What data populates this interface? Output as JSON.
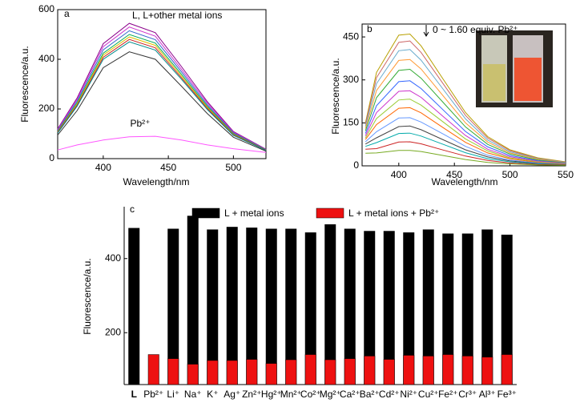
{
  "chart_data": [
    {
      "type": "line",
      "panel": "a",
      "annotation": "L, L+other metal ions",
      "annotation2": "Pb²⁺",
      "xlabel": "Wavelength/nm",
      "ylabel": "Fluorescence/a.u.",
      "xlim": [
        365,
        525
      ],
      "ylim": [
        0,
        600
      ],
      "xticks": [
        400,
        450,
        500
      ],
      "yticks": [
        0,
        200,
        400,
        600
      ],
      "x": [
        365,
        380,
        400,
        420,
        440,
        460,
        480,
        500,
        525
      ],
      "series": [
        {
          "color": "#8b008b",
          "values": [
            120,
            245,
            463,
            545,
            507,
            371,
            229,
            109,
            38
          ]
        },
        {
          "color": "#cc33cc",
          "values": [
            117,
            239,
            451,
            530,
            493,
            360,
            223,
            106,
            37
          ]
        },
        {
          "color": "#3366cc",
          "values": [
            113,
            232,
            438,
            515,
            479,
            350,
            216,
            103,
            36
          ]
        },
        {
          "color": "#00aa55",
          "values": [
            110,
            225,
            425,
            500,
            465,
            340,
            210,
            100,
            35
          ]
        },
        {
          "color": "#e0c000",
          "values": [
            108,
            221,
            417,
            490,
            456,
            333,
            206,
            98,
            34
          ]
        },
        {
          "color": "#cc2222",
          "values": [
            106,
            216,
            408,
            480,
            446,
            326,
            202,
            96,
            34
          ]
        },
        {
          "color": "#008b8b",
          "values": [
            103,
            212,
            400,
            470,
            437,
            320,
            197,
            94,
            33
          ]
        },
        {
          "color": "#333333",
          "values": [
            95,
            194,
            366,
            430,
            400,
            292,
            181,
            86,
            30
          ]
        },
        {
          "color": "#ff55ff",
          "values": [
            35,
            55,
            75,
            88,
            90,
            75,
            55,
            40,
            25
          ]
        }
      ]
    },
    {
      "type": "line",
      "panel": "b",
      "annotation": "0 ~ 1.60 equiv. Pb²⁺",
      "xlabel": "Wavelength/nm",
      "ylabel": "Fluorescence/a.u.",
      "xlim": [
        367,
        550
      ],
      "ylim": [
        0,
        495
      ],
      "xticks": [
        400,
        450,
        500,
        550
      ],
      "yticks": [
        0,
        150,
        300,
        450
      ],
      "x": [
        370,
        380,
        400,
        410,
        420,
        440,
        460,
        480,
        500,
        525,
        550
      ],
      "series": [
        {
          "color": "#b8a000",
          "values": [
            150,
            326,
            456,
            460,
            419,
            302,
            186,
            102,
            56,
            28,
            14
          ]
        },
        {
          "color": "#cc6666",
          "values": [
            145,
            308,
            431,
            436,
            396,
            286,
            176,
            97,
            53,
            26,
            13
          ]
        },
        {
          "color": "#66aacc",
          "values": [
            138,
            287,
            402,
            406,
            369,
            267,
            164,
            90,
            49,
            25,
            12
          ]
        },
        {
          "color": "#ff9933",
          "values": [
            130,
            263,
            368,
            371,
            338,
            244,
            150,
            83,
            45,
            23,
            11
          ]
        },
        {
          "color": "#33aa33",
          "values": [
            122,
            238,
            333,
            337,
            306,
            221,
            136,
            75,
            41,
            20,
            10
          ]
        },
        {
          "color": "#3366ff",
          "values": [
            113,
            210,
            294,
            297,
            270,
            195,
            120,
            66,
            36,
            18,
            9
          ]
        },
        {
          "color": "#cc33cc",
          "values": [
            105,
            186,
            260,
            262,
            239,
            172,
            106,
            58,
            32,
            16,
            8
          ]
        },
        {
          "color": "#99cc33",
          "values": [
            98,
            165,
            230,
            233,
            212,
            153,
            94,
            52,
            28,
            14,
            7
          ]
        },
        {
          "color": "#ff6600",
          "values": [
            92,
            144,
            201,
            203,
            185,
            133,
            82,
            45,
            25,
            12,
            6
          ]
        },
        {
          "color": "#6699ff",
          "values": [
            84,
            119,
            167,
            168,
            153,
            111,
            68,
            37,
            20,
            10,
            5
          ]
        },
        {
          "color": "#444444",
          "values": [
            76,
            98,
            137,
            139,
            126,
            91,
            56,
            31,
            17,
            8,
            4
          ]
        },
        {
          "color": "#00aaaa",
          "values": [
            68,
            81,
            113,
            114,
            104,
            75,
            46,
            25,
            14,
            7,
            3
          ]
        },
        {
          "color": "#cc2222",
          "values": [
            58,
            60,
            83,
            84,
            77,
            55,
            34,
            19,
            10,
            5,
            3
          ]
        },
        {
          "color": "#77aa22",
          "values": [
            44,
            45,
            54,
            54,
            50,
            36,
            22,
            12,
            7,
            3,
            2
          ]
        }
      ]
    },
    {
      "type": "bar",
      "panel": "c",
      "ylabel": "Fluorescence/a.u.",
      "ylim": [
        60,
        540
      ],
      "yticks": [
        200,
        400
      ],
      "categories": [
        "L",
        "Pb²⁺",
        "Li⁺",
        "Na⁺",
        "K⁺",
        "Ag⁺",
        "Zn²⁺",
        "Hg²⁺",
        "Mn²⁺",
        "Co²⁺",
        "Mg²⁺",
        "Ca²⁺",
        "Ba²⁺",
        "Cd²⁺",
        "Ni²⁺",
        "Cu²⁺",
        "Fe²⁺",
        "Cr³⁺",
        "Al³⁺",
        "Fe³⁺"
      ],
      "series": [
        {
          "name": "L  +  metal ions",
          "color": "#000000",
          "values": [
            482,
            null,
            480,
            515,
            478,
            485,
            483,
            480,
            480,
            470,
            492,
            480,
            474,
            474,
            470,
            478,
            467,
            467,
            478,
            464
          ]
        },
        {
          "name": "L  +  metal ions + Pb²⁺",
          "color": "#ee1111",
          "values": [
            null,
            141,
            130,
            115,
            125,
            125,
            128,
            117,
            127,
            141,
            127,
            130,
            137,
            128,
            139,
            137,
            141,
            137,
            134,
            141
          ]
        }
      ]
    }
  ]
}
